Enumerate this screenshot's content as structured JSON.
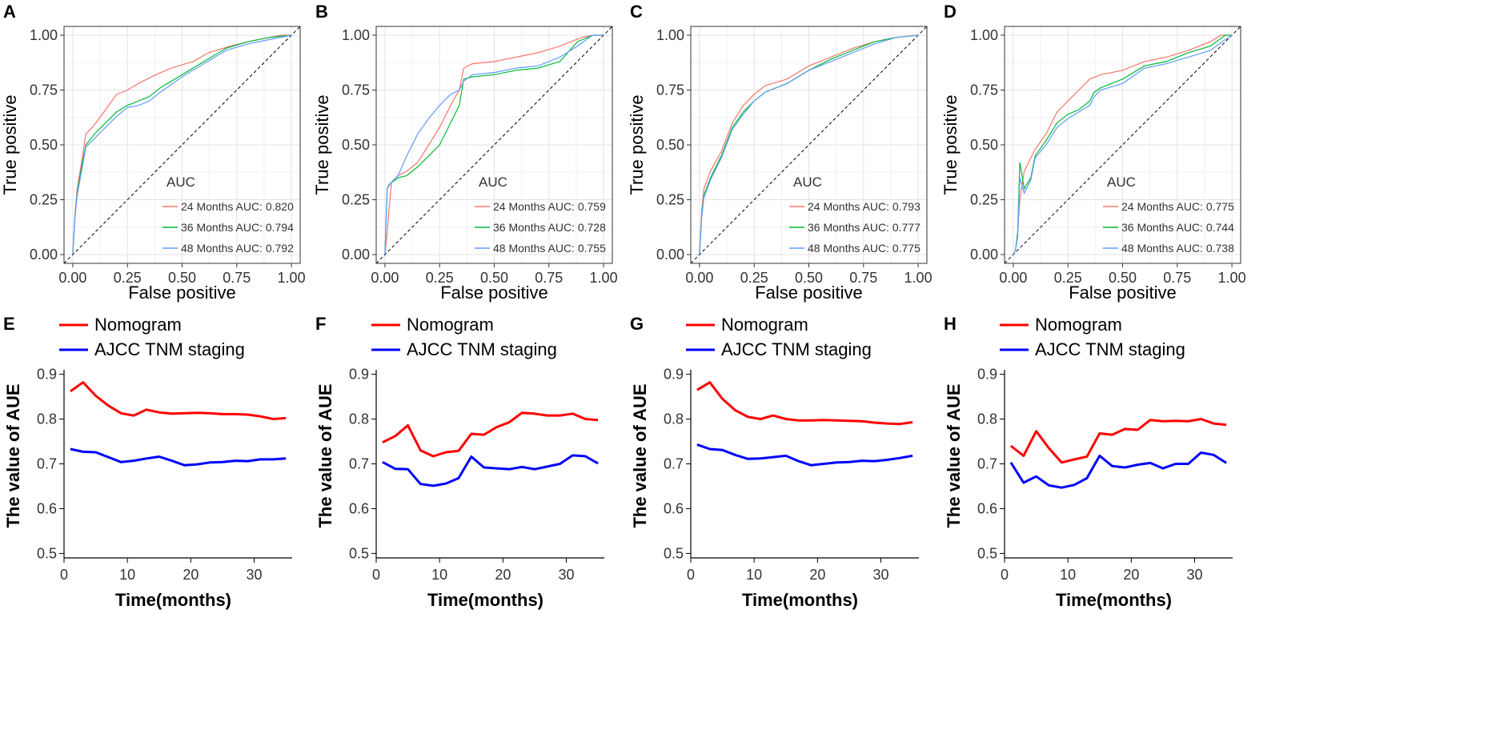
{
  "chart_data": [
    {
      "panel": "A",
      "type": "line",
      "xlabel": "False positive",
      "ylabel": "True positive",
      "xlim": [
        0,
        1
      ],
      "ylim": [
        0,
        1
      ],
      "grid": true,
      "xticks": [
        "0.00",
        "0.25",
        "0.50",
        "0.75",
        "1.00"
      ],
      "yticks": [
        "0.00",
        "0.25",
        "0.50",
        "0.75",
        "1.00"
      ],
      "legend_title": "AUC",
      "legend_position": "bottom-right",
      "series": [
        {
          "name": "24 Months AUC: 0.820",
          "color": "#f8766d",
          "x": [
            0,
            0.01,
            0.02,
            0.04,
            0.06,
            0.09,
            0.12,
            0.15,
            0.2,
            0.25,
            0.3,
            0.38,
            0.45,
            0.55,
            0.62,
            0.72,
            0.8,
            0.9,
            0.95,
            1
          ],
          "y": [
            0,
            0.18,
            0.3,
            0.42,
            0.55,
            0.58,
            0.62,
            0.66,
            0.73,
            0.75,
            0.78,
            0.82,
            0.85,
            0.88,
            0.92,
            0.95,
            0.97,
            0.99,
            1.0,
            1.0
          ]
        },
        {
          "name": "36 Months AUC: 0.794",
          "color": "#00ba38",
          "x": [
            0,
            0.01,
            0.02,
            0.04,
            0.06,
            0.1,
            0.15,
            0.2,
            0.25,
            0.3,
            0.35,
            0.4,
            0.5,
            0.6,
            0.7,
            0.8,
            0.9,
            1
          ],
          "y": [
            0,
            0.18,
            0.28,
            0.4,
            0.5,
            0.55,
            0.6,
            0.65,
            0.68,
            0.7,
            0.72,
            0.76,
            0.82,
            0.88,
            0.94,
            0.97,
            0.99,
            1.0
          ]
        },
        {
          "name": "48 Months AUC: 0.792",
          "color": "#619cff",
          "x": [
            0,
            0.01,
            0.02,
            0.04,
            0.06,
            0.1,
            0.15,
            0.2,
            0.25,
            0.3,
            0.35,
            0.4,
            0.5,
            0.6,
            0.7,
            0.8,
            0.9,
            1
          ],
          "y": [
            0,
            0.17,
            0.27,
            0.38,
            0.49,
            0.53,
            0.58,
            0.63,
            0.67,
            0.68,
            0.7,
            0.74,
            0.81,
            0.87,
            0.93,
            0.96,
            0.98,
            1.0
          ]
        }
      ]
    },
    {
      "panel": "B",
      "type": "line",
      "xlabel": "False positive",
      "ylabel": "True positive",
      "xlim": [
        0,
        1
      ],
      "ylim": [
        0,
        1
      ],
      "grid": true,
      "xticks": [
        "0.00",
        "0.25",
        "0.50",
        "0.75",
        "1.00"
      ],
      "yticks": [
        "0.00",
        "0.25",
        "0.50",
        "0.75",
        "1.00"
      ],
      "legend_title": "AUC",
      "legend_position": "bottom-right",
      "series": [
        {
          "name": "24 Months AUC: 0.759",
          "color": "#f8766d",
          "x": [
            0,
            0.01,
            0.02,
            0.03,
            0.06,
            0.1,
            0.15,
            0.2,
            0.25,
            0.3,
            0.34,
            0.36,
            0.4,
            0.5,
            0.6,
            0.7,
            0.8,
            0.9,
            0.95,
            1
          ],
          "y": [
            0,
            0.1,
            0.22,
            0.33,
            0.36,
            0.38,
            0.42,
            0.5,
            0.58,
            0.68,
            0.75,
            0.85,
            0.87,
            0.88,
            0.9,
            0.92,
            0.95,
            0.99,
            1.0,
            1.0
          ]
        },
        {
          "name": "36 Months AUC: 0.728",
          "color": "#00ba38",
          "x": [
            0,
            0.01,
            0.02,
            0.06,
            0.1,
            0.15,
            0.2,
            0.25,
            0.3,
            0.34,
            0.36,
            0.4,
            0.5,
            0.6,
            0.7,
            0.8,
            0.88,
            0.95,
            1
          ],
          "y": [
            0,
            0.3,
            0.32,
            0.35,
            0.36,
            0.4,
            0.45,
            0.5,
            0.6,
            0.68,
            0.8,
            0.81,
            0.82,
            0.84,
            0.85,
            0.88,
            0.97,
            1.0,
            1.0
          ]
        },
        {
          "name": "48 Months AUC: 0.755",
          "color": "#619cff",
          "x": [
            0,
            0.01,
            0.03,
            0.06,
            0.1,
            0.15,
            0.2,
            0.25,
            0.3,
            0.34,
            0.36,
            0.4,
            0.5,
            0.6,
            0.7,
            0.8,
            0.88,
            0.95,
            1
          ],
          "y": [
            0,
            0.3,
            0.33,
            0.36,
            0.45,
            0.55,
            0.62,
            0.68,
            0.73,
            0.75,
            0.79,
            0.82,
            0.83,
            0.85,
            0.86,
            0.9,
            0.95,
            1.0,
            1.0
          ]
        }
      ]
    },
    {
      "panel": "C",
      "type": "line",
      "xlabel": "False positive",
      "ylabel": "True positive",
      "xlim": [
        0,
        1
      ],
      "ylim": [
        0,
        1
      ],
      "grid": true,
      "xticks": [
        "0.00",
        "0.25",
        "0.50",
        "0.75",
        "1.00"
      ],
      "yticks": [
        "0.00",
        "0.25",
        "0.50",
        "0.75",
        "1.00"
      ],
      "legend_title": "AUC",
      "legend_position": "bottom-right",
      "series": [
        {
          "name": "24 Months AUC: 0.793",
          "color": "#f8766d",
          "x": [
            0,
            0.01,
            0.02,
            0.05,
            0.1,
            0.15,
            0.2,
            0.25,
            0.3,
            0.4,
            0.5,
            0.6,
            0.7,
            0.8,
            0.9,
            1
          ],
          "y": [
            0,
            0.2,
            0.3,
            0.38,
            0.47,
            0.6,
            0.68,
            0.73,
            0.77,
            0.8,
            0.86,
            0.9,
            0.94,
            0.97,
            0.99,
            1.0
          ]
        },
        {
          "name": "36 Months AUC: 0.777",
          "color": "#00ba38",
          "x": [
            0,
            0.01,
            0.02,
            0.05,
            0.1,
            0.15,
            0.2,
            0.25,
            0.3,
            0.4,
            0.5,
            0.6,
            0.7,
            0.8,
            0.9,
            1
          ],
          "y": [
            0,
            0.18,
            0.27,
            0.35,
            0.45,
            0.58,
            0.65,
            0.7,
            0.74,
            0.78,
            0.84,
            0.89,
            0.93,
            0.97,
            0.99,
            1.0
          ]
        },
        {
          "name": "48 Months AUC: 0.775",
          "color": "#619cff",
          "x": [
            0,
            0.01,
            0.02,
            0.05,
            0.1,
            0.15,
            0.2,
            0.25,
            0.3,
            0.4,
            0.5,
            0.6,
            0.7,
            0.8,
            0.9,
            1
          ],
          "y": [
            0,
            0.17,
            0.26,
            0.34,
            0.44,
            0.57,
            0.64,
            0.7,
            0.74,
            0.78,
            0.84,
            0.88,
            0.92,
            0.96,
            0.99,
            1.0
          ]
        }
      ]
    },
    {
      "panel": "D",
      "type": "line",
      "xlabel": "False positive",
      "ylabel": "True positive",
      "xlim": [
        0,
        1
      ],
      "ylim": [
        0,
        1
      ],
      "grid": true,
      "xticks": [
        "0.00",
        "0.25",
        "0.50",
        "0.75",
        "1.00"
      ],
      "yticks": [
        "0.00",
        "0.25",
        "0.50",
        "0.75",
        "1.00"
      ],
      "legend_title": "AUC",
      "legend_position": "bottom-right",
      "series": [
        {
          "name": "24 Months AUC: 0.775",
          "color": "#f8766d",
          "x": [
            0,
            0.01,
            0.02,
            0.03,
            0.05,
            0.08,
            0.1,
            0.15,
            0.2,
            0.25,
            0.3,
            0.35,
            0.4,
            0.5,
            0.6,
            0.7,
            0.8,
            0.9,
            0.95,
            1
          ],
          "y": [
            0,
            0.02,
            0.1,
            0.25,
            0.38,
            0.44,
            0.48,
            0.55,
            0.65,
            0.7,
            0.75,
            0.8,
            0.82,
            0.84,
            0.88,
            0.9,
            0.93,
            0.97,
            1.0,
            1.0
          ]
        },
        {
          "name": "36 Months AUC: 0.744",
          "color": "#00ba38",
          "x": [
            0,
            0.01,
            0.02,
            0.03,
            0.05,
            0.08,
            0.1,
            0.15,
            0.2,
            0.25,
            0.3,
            0.35,
            0.37,
            0.4,
            0.5,
            0.6,
            0.7,
            0.8,
            0.9,
            0.97,
            1
          ],
          "y": [
            0,
            0.02,
            0.1,
            0.42,
            0.3,
            0.35,
            0.45,
            0.52,
            0.6,
            0.64,
            0.66,
            0.7,
            0.74,
            0.76,
            0.8,
            0.86,
            0.88,
            0.92,
            0.95,
            1.0,
            1.0
          ]
        },
        {
          "name": "48 Months AUC: 0.738",
          "color": "#619cff",
          "x": [
            0,
            0.01,
            0.02,
            0.03,
            0.05,
            0.08,
            0.1,
            0.15,
            0.2,
            0.25,
            0.3,
            0.35,
            0.37,
            0.4,
            0.5,
            0.6,
            0.7,
            0.8,
            0.9,
            0.97,
            1
          ],
          "y": [
            0,
            0.02,
            0.08,
            0.35,
            0.28,
            0.34,
            0.44,
            0.5,
            0.58,
            0.62,
            0.65,
            0.68,
            0.72,
            0.75,
            0.78,
            0.85,
            0.87,
            0.9,
            0.93,
            0.98,
            1.0
          ]
        }
      ]
    },
    {
      "panel": "E",
      "type": "line",
      "xlabel": "Time(months)",
      "ylabel": "The value of AUE",
      "xlim": [
        0,
        36
      ],
      "ylim": [
        0.5,
        0.9
      ],
      "grid": false,
      "xticks": [
        "0",
        "10",
        "20",
        "30"
      ],
      "yticks": [
        "0.5",
        "0.6",
        "0.7",
        "0.8",
        "0.9"
      ],
      "legend_position": "top-left",
      "series": [
        {
          "name": "Nomogram",
          "color": "#ff0000",
          "x": [
            1,
            3,
            5,
            7,
            9,
            11,
            13,
            15,
            17,
            19,
            21,
            23,
            25,
            27,
            29,
            31,
            33,
            35
          ],
          "y": [
            0.862,
            0.882,
            0.852,
            0.83,
            0.813,
            0.808,
            0.821,
            0.815,
            0.812,
            0.813,
            0.814,
            0.813,
            0.811,
            0.811,
            0.81,
            0.806,
            0.8,
            0.802
          ]
        },
        {
          "name": "AJCC TNM staging",
          "color": "#0000ff",
          "x": [
            1,
            3,
            5,
            7,
            9,
            11,
            13,
            15,
            17,
            19,
            21,
            23,
            25,
            27,
            29,
            31,
            33,
            35
          ],
          "y": [
            0.733,
            0.727,
            0.726,
            0.715,
            0.704,
            0.707,
            0.712,
            0.716,
            0.707,
            0.697,
            0.699,
            0.703,
            0.704,
            0.707,
            0.706,
            0.71,
            0.71,
            0.712
          ]
        }
      ]
    },
    {
      "panel": "F",
      "type": "line",
      "xlabel": "Time(months)",
      "ylabel": "The value of AUE",
      "xlim": [
        0,
        36
      ],
      "ylim": [
        0.5,
        0.9
      ],
      "grid": false,
      "xticks": [
        "0",
        "10",
        "20",
        "30"
      ],
      "yticks": [
        "0.5",
        "0.6",
        "0.7",
        "0.8",
        "0.9"
      ],
      "legend_position": "top-left",
      "series": [
        {
          "name": "Nomogram",
          "color": "#ff0000",
          "x": [
            1,
            3,
            5,
            7,
            9,
            11,
            13,
            15,
            17,
            19,
            21,
            23,
            25,
            27,
            29,
            31,
            33,
            35
          ],
          "y": [
            0.748,
            0.762,
            0.786,
            0.73,
            0.717,
            0.726,
            0.729,
            0.767,
            0.765,
            0.782,
            0.793,
            0.814,
            0.812,
            0.808,
            0.808,
            0.812,
            0.8,
            0.798
          ]
        },
        {
          "name": "AJCC TNM staging",
          "color": "#0000ff",
          "x": [
            1,
            3,
            5,
            7,
            9,
            11,
            13,
            15,
            17,
            19,
            21,
            23,
            25,
            27,
            29,
            31,
            33,
            35
          ],
          "y": [
            0.704,
            0.689,
            0.688,
            0.655,
            0.651,
            0.656,
            0.668,
            0.716,
            0.692,
            0.69,
            0.688,
            0.693,
            0.688,
            0.694,
            0.7,
            0.719,
            0.717,
            0.701
          ]
        }
      ]
    },
    {
      "panel": "G",
      "type": "line",
      "xlabel": "Time(months)",
      "ylabel": "The value of AUE",
      "xlim": [
        0,
        36
      ],
      "ylim": [
        0.5,
        0.9
      ],
      "grid": false,
      "xticks": [
        "0",
        "10",
        "20",
        "30"
      ],
      "yticks": [
        "0.5",
        "0.6",
        "0.7",
        "0.8",
        "0.9"
      ],
      "legend_position": "top-left",
      "series": [
        {
          "name": "Nomogram",
          "color": "#ff0000",
          "x": [
            1,
            3,
            5,
            7,
            9,
            11,
            13,
            15,
            17,
            19,
            21,
            23,
            25,
            27,
            29,
            31,
            33,
            35
          ],
          "y": [
            0.865,
            0.882,
            0.845,
            0.82,
            0.805,
            0.8,
            0.808,
            0.8,
            0.797,
            0.797,
            0.798,
            0.797,
            0.796,
            0.795,
            0.792,
            0.79,
            0.789,
            0.793
          ]
        },
        {
          "name": "AJCC TNM staging",
          "color": "#0000ff",
          "x": [
            1,
            3,
            5,
            7,
            9,
            11,
            13,
            15,
            17,
            19,
            21,
            23,
            25,
            27,
            29,
            31,
            33,
            35
          ],
          "y": [
            0.743,
            0.733,
            0.731,
            0.72,
            0.711,
            0.712,
            0.715,
            0.718,
            0.706,
            0.697,
            0.7,
            0.703,
            0.704,
            0.707,
            0.706,
            0.709,
            0.713,
            0.718
          ]
        }
      ]
    },
    {
      "panel": "H",
      "type": "line",
      "xlabel": "Time(months)",
      "ylabel": "The value of AUE",
      "xlim": [
        0,
        36
      ],
      "ylim": [
        0.5,
        0.9
      ],
      "grid": false,
      "xticks": [
        "0",
        "10",
        "20",
        "30"
      ],
      "yticks": [
        "0.5",
        "0.6",
        "0.7",
        "0.8",
        "0.9"
      ],
      "legend_position": "top-left",
      "series": [
        {
          "name": "Nomogram",
          "color": "#ff0000",
          "x": [
            1,
            3,
            5,
            7,
            9,
            11,
            13,
            15,
            17,
            19,
            21,
            23,
            25,
            27,
            29,
            31,
            33,
            35
          ],
          "y": [
            0.74,
            0.718,
            0.773,
            0.735,
            0.703,
            0.71,
            0.716,
            0.768,
            0.765,
            0.778,
            0.776,
            0.798,
            0.795,
            0.796,
            0.795,
            0.8,
            0.79,
            0.787
          ]
        },
        {
          "name": "AJCC TNM staging",
          "color": "#0000ff",
          "x": [
            1,
            3,
            5,
            7,
            9,
            11,
            13,
            15,
            17,
            19,
            21,
            23,
            25,
            27,
            29,
            31,
            33,
            35
          ],
          "y": [
            0.703,
            0.658,
            0.672,
            0.652,
            0.647,
            0.653,
            0.668,
            0.718,
            0.695,
            0.692,
            0.698,
            0.702,
            0.69,
            0.7,
            0.7,
            0.725,
            0.72,
            0.702
          ]
        }
      ]
    }
  ]
}
